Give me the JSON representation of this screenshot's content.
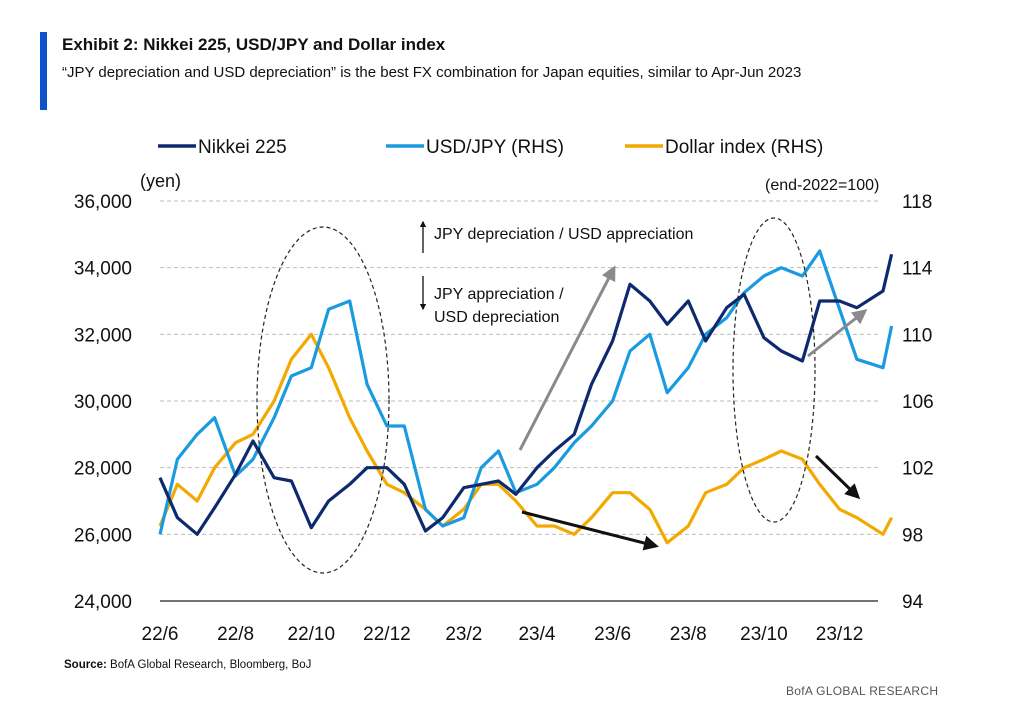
{
  "header": {
    "title": "Exhibit 2: Nikkei 225, USD/JPY and Dollar index",
    "subtitle": "“JPY depreciation and USD depreciation” is the best FX combination for Japan equities, similar to Apr-Jun 2023"
  },
  "footer": {
    "source_label": "Source:",
    "source_text": "BofA Global Research, Bloomberg, BoJ",
    "brand": "BofA GLOBAL RESEARCH"
  },
  "chart_data": {
    "type": "line",
    "x_ticks": [
      "22/6",
      "22/8",
      "22/10",
      "22/12",
      "23/2",
      "23/4",
      "23/6",
      "23/8",
      "23/10",
      "23/12"
    ],
    "x_range": [
      "2022-06",
      "2024-01"
    ],
    "y_left": {
      "label": "(yen)",
      "ticks": [
        "36,000",
        "34,000",
        "32,000",
        "30,000",
        "28,000",
        "26,000",
        "24,000"
      ],
      "ylim": [
        24000,
        36000
      ]
    },
    "y_right": {
      "label": "(end-2022=100)",
      "ticks": [
        "118",
        "114",
        "110",
        "106",
        "102",
        "98",
        "94"
      ],
      "ylim": [
        94,
        118
      ]
    },
    "grid": "horizontal dashed",
    "legend_position": "top",
    "series": [
      {
        "name": "Nikkei 225",
        "axis": "left",
        "color": "#0d2a6e",
        "points": [
          [
            "2022-06-01",
            27700
          ],
          [
            "2022-06-15",
            26500
          ],
          [
            "2022-07-01",
            26000
          ],
          [
            "2022-07-15",
            26800
          ],
          [
            "2022-08-01",
            27800
          ],
          [
            "2022-08-15",
            28800
          ],
          [
            "2022-09-01",
            27700
          ],
          [
            "2022-09-15",
            27600
          ],
          [
            "2022-10-01",
            26200
          ],
          [
            "2022-10-15",
            27000
          ],
          [
            "2022-11-01",
            27500
          ],
          [
            "2022-11-15",
            28000
          ],
          [
            "2022-12-01",
            28000
          ],
          [
            "2022-12-15",
            27500
          ],
          [
            "2023-01-01",
            26100
          ],
          [
            "2023-01-15",
            26500
          ],
          [
            "2023-02-01",
            27400
          ],
          [
            "2023-02-15",
            27500
          ],
          [
            "2023-03-01",
            27600
          ],
          [
            "2023-03-15",
            27200
          ],
          [
            "2023-04-01",
            28000
          ],
          [
            "2023-04-15",
            28500
          ],
          [
            "2023-05-01",
            29000
          ],
          [
            "2023-05-15",
            30500
          ],
          [
            "2023-06-01",
            31800
          ],
          [
            "2023-06-15",
            33500
          ],
          [
            "2023-07-01",
            33000
          ],
          [
            "2023-07-15",
            32300
          ],
          [
            "2023-08-01",
            33000
          ],
          [
            "2023-08-15",
            31800
          ],
          [
            "2023-09-01",
            32800
          ],
          [
            "2023-09-15",
            33200
          ],
          [
            "2023-10-01",
            31900
          ],
          [
            "2023-10-15",
            31500
          ],
          [
            "2023-11-01",
            31200
          ],
          [
            "2023-11-15",
            33000
          ],
          [
            "2023-12-01",
            33000
          ],
          [
            "2023-12-15",
            32800
          ],
          [
            "2024-01-05",
            33300
          ],
          [
            "2024-01-12",
            34400
          ]
        ]
      },
      {
        "name": "USD/JPY (RHS)",
        "axis": "right",
        "color": "#1a9be0",
        "points": [
          [
            "2022-06-01",
            98
          ],
          [
            "2022-06-15",
            102.5
          ],
          [
            "2022-07-01",
            104
          ],
          [
            "2022-07-15",
            105
          ],
          [
            "2022-08-01",
            101.5
          ],
          [
            "2022-08-15",
            102.5
          ],
          [
            "2022-09-01",
            105
          ],
          [
            "2022-09-15",
            107.5
          ],
          [
            "2022-10-01",
            108
          ],
          [
            "2022-10-15",
            111.5
          ],
          [
            "2022-11-01",
            112
          ],
          [
            "2022-11-15",
            107
          ],
          [
            "2022-12-01",
            104.5
          ],
          [
            "2022-12-15",
            104.5
          ],
          [
            "2023-01-01",
            99.5
          ],
          [
            "2023-01-15",
            98.5
          ],
          [
            "2023-02-01",
            99
          ],
          [
            "2023-02-15",
            102
          ],
          [
            "2023-03-01",
            103
          ],
          [
            "2023-03-15",
            100.5
          ],
          [
            "2023-04-01",
            101
          ],
          [
            "2023-04-15",
            102
          ],
          [
            "2023-05-01",
            103.5
          ],
          [
            "2023-05-15",
            104.5
          ],
          [
            "2023-06-01",
            106
          ],
          [
            "2023-06-15",
            109
          ],
          [
            "2023-07-01",
            110
          ],
          [
            "2023-07-15",
            106.5
          ],
          [
            "2023-08-01",
            108
          ],
          [
            "2023-08-15",
            110
          ],
          [
            "2023-09-01",
            111
          ],
          [
            "2023-09-15",
            112.5
          ],
          [
            "2023-10-01",
            113.5
          ],
          [
            "2023-10-15",
            114
          ],
          [
            "2023-11-01",
            113.5
          ],
          [
            "2023-11-15",
            115
          ],
          [
            "2023-12-01",
            111.5
          ],
          [
            "2023-12-15",
            108.5
          ],
          [
            "2024-01-05",
            108
          ],
          [
            "2024-01-12",
            110.5
          ]
        ]
      },
      {
        "name": "Dollar index (RHS)",
        "axis": "right",
        "color": "#f2a900",
        "points": [
          [
            "2022-06-01",
            98.5
          ],
          [
            "2022-06-15",
            101
          ],
          [
            "2022-07-01",
            100
          ],
          [
            "2022-07-15",
            102
          ],
          [
            "2022-08-01",
            103.5
          ],
          [
            "2022-08-15",
            104
          ],
          [
            "2022-09-01",
            106
          ],
          [
            "2022-09-15",
            108.5
          ],
          [
            "2022-10-01",
            110
          ],
          [
            "2022-10-15",
            108
          ],
          [
            "2022-11-01",
            105
          ],
          [
            "2022-11-15",
            103
          ],
          [
            "2022-12-01",
            101
          ],
          [
            "2022-12-15",
            100.5
          ],
          [
            "2023-01-01",
            99.5
          ],
          [
            "2023-01-15",
            98.5
          ],
          [
            "2023-02-01",
            99.5
          ],
          [
            "2023-02-15",
            101
          ],
          [
            "2023-03-01",
            101
          ],
          [
            "2023-03-15",
            100
          ],
          [
            "2023-04-01",
            98.5
          ],
          [
            "2023-04-15",
            98.5
          ],
          [
            "2023-05-01",
            98
          ],
          [
            "2023-05-15",
            99
          ],
          [
            "2023-06-01",
            100.5
          ],
          [
            "2023-06-15",
            100.5
          ],
          [
            "2023-07-01",
            99.5
          ],
          [
            "2023-07-15",
            97.5
          ],
          [
            "2023-08-01",
            98.5
          ],
          [
            "2023-08-15",
            100.5
          ],
          [
            "2023-09-01",
            101
          ],
          [
            "2023-09-15",
            102
          ],
          [
            "2023-10-01",
            102.5
          ],
          [
            "2023-10-15",
            103
          ],
          [
            "2023-11-01",
            102.5
          ],
          [
            "2023-11-15",
            101
          ],
          [
            "2023-12-01",
            99.5
          ],
          [
            "2023-12-15",
            99
          ],
          [
            "2024-01-05",
            98
          ],
          [
            "2024-01-12",
            99
          ]
        ]
      }
    ],
    "annotations": {
      "legend_up": "JPY depreciation  / USD appreciation",
      "legend_down_1": "JPY appreciation /",
      "legend_down_2": "USD depreciation"
    }
  }
}
